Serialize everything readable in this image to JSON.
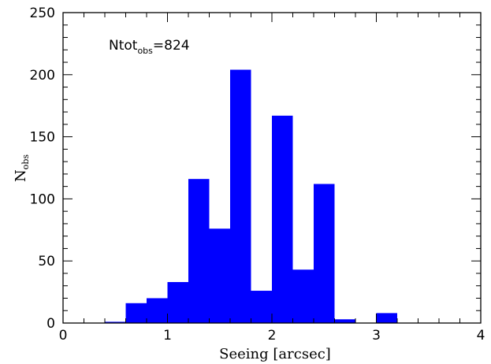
{
  "chart_data": {
    "type": "bar",
    "histogram": true,
    "bin_width": 0.2,
    "bins": [
      {
        "x0": 0.0,
        "x1": 0.2,
        "value": 0
      },
      {
        "x0": 0.2,
        "x1": 0.4,
        "value": 0
      },
      {
        "x0": 0.4,
        "x1": 0.6,
        "value": 1
      },
      {
        "x0": 0.6,
        "x1": 0.8,
        "value": 16
      },
      {
        "x0": 0.8,
        "x1": 1.0,
        "value": 20
      },
      {
        "x0": 1.0,
        "x1": 1.2,
        "value": 33
      },
      {
        "x0": 1.2,
        "x1": 1.4,
        "value": 116
      },
      {
        "x0": 1.4,
        "x1": 1.6,
        "value": 76
      },
      {
        "x0": 1.6,
        "x1": 1.8,
        "value": 204
      },
      {
        "x0": 1.8,
        "x1": 2.0,
        "value": 26
      },
      {
        "x0": 2.0,
        "x1": 2.2,
        "value": 167
      },
      {
        "x0": 2.2,
        "x1": 2.4,
        "value": 43
      },
      {
        "x0": 2.4,
        "x1": 2.6,
        "value": 112
      },
      {
        "x0": 2.6,
        "x1": 2.8,
        "value": 3
      },
      {
        "x0": 2.8,
        "x1": 3.0,
        "value": 0
      },
      {
        "x0": 3.0,
        "x1": 3.2,
        "value": 8
      },
      {
        "x0": 3.2,
        "x1": 3.4,
        "value": 0
      },
      {
        "x0": 3.4,
        "x1": 3.6,
        "value": 0
      },
      {
        "x0": 3.6,
        "x1": 3.8,
        "value": 0
      },
      {
        "x0": 3.8,
        "x1": 4.0,
        "value": 0
      }
    ],
    "xlabel": "Seeing [arcsec]",
    "ylabel": {
      "main": "N",
      "sub": "obs"
    },
    "xlim": [
      0,
      4
    ],
    "ylim": [
      0,
      250
    ],
    "x_ticks": [
      0,
      1,
      2,
      3,
      4
    ],
    "y_ticks": [
      0,
      50,
      100,
      150,
      200,
      250
    ],
    "x_minor_step": 0.2,
    "y_minor_step": 10,
    "grid": false,
    "bar_color": "#0000ff",
    "annotation": {
      "main": "Ntot",
      "sub": "obs",
      "rest": "=824"
    }
  }
}
